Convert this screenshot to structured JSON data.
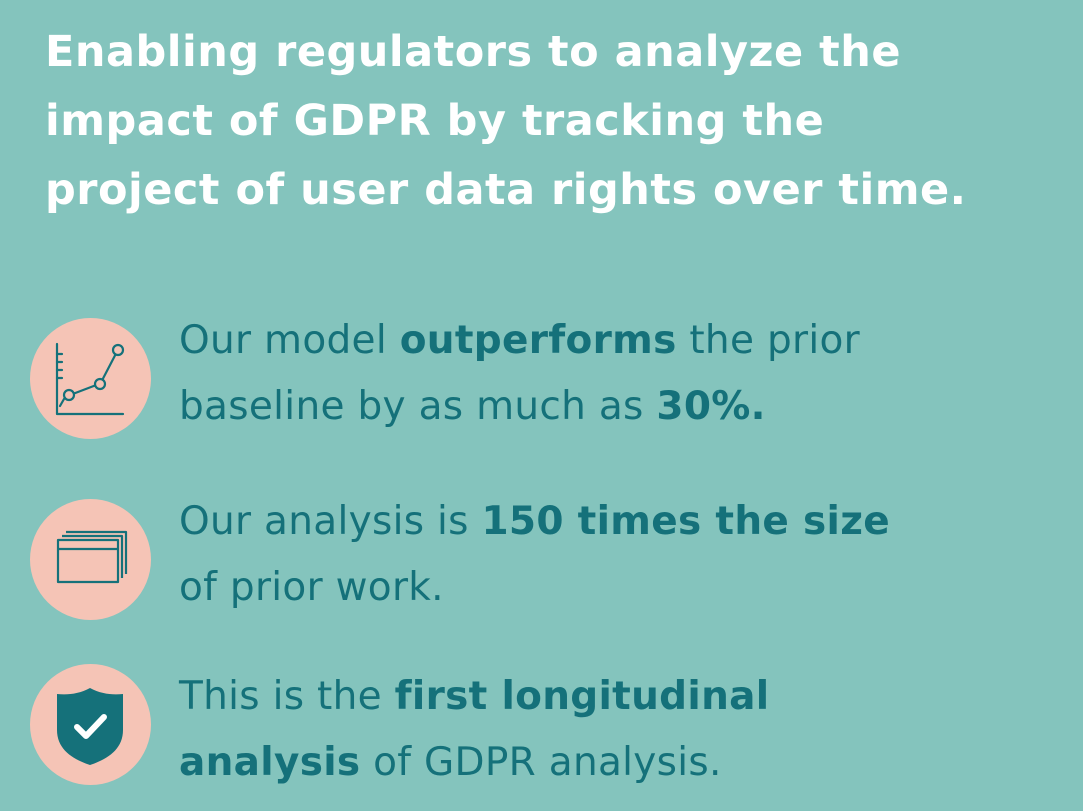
{
  "headline": {
    "lines": [
      "Enabling regulators to analyze the",
      "impact of GDPR by tracking the",
      "project of user data rights over time."
    ]
  },
  "items": [
    {
      "icon": "line-chart-icon",
      "line1": {
        "pre": "Our model ",
        "bold": "outperforms",
        "post": " the prior"
      },
      "line2": {
        "pre": "baseline by as much as ",
        "bold": "30%."
      }
    },
    {
      "icon": "stacked-windows-icon",
      "line1": {
        "pre": "Our analysis is ",
        "bold": "150 times the size"
      },
      "line2": {
        "pre": "of prior work."
      }
    },
    {
      "icon": "shield-check-icon",
      "line1": {
        "pre": "This is the ",
        "bold": "first longitudinal"
      },
      "line2": {
        "bold": "analysis",
        "post": " of GDPR analysis."
      }
    }
  ],
  "colors": {
    "background": "#84c4bd",
    "headline": "#ffffff",
    "body_text": "#15717a",
    "icon_circle": "#f5c4b6",
    "icon_stroke": "#15717a"
  }
}
